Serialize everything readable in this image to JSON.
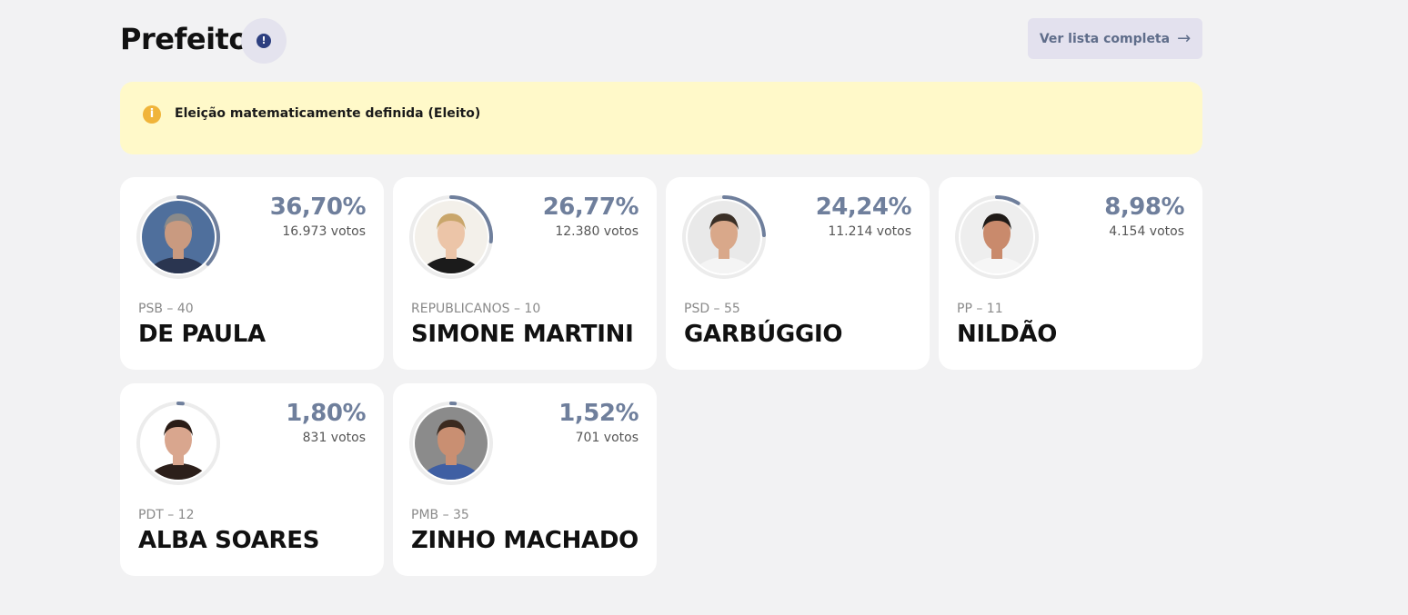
{
  "header": {
    "title": "Prefeito",
    "info_glyph": "!",
    "list_button_label": "Ver lista completa",
    "list_button_arrow": "→"
  },
  "banner": {
    "icon_glyph": "i",
    "text": "Eleição matematicamente definida (Eleito)"
  },
  "colors": {
    "accent": "#6f7f9c",
    "ring_track": "#ececec",
    "banner_bg": "#fff9c9",
    "banner_icon": "#f0b43a",
    "info_icon": "#2d3f80"
  },
  "candidates": [
    {
      "pct": "36,70%",
      "share": 0.367,
      "votes": "16.973 votos",
      "party": "PSB – 40",
      "name": "DE PAULA",
      "photo": {
        "bg": "#4f6f9c",
        "skin": "#c99a80",
        "hair": "#8a8a8a",
        "shirt": "#2a3550"
      }
    },
    {
      "pct": "26,77%",
      "share": 0.2677,
      "votes": "12.380 votos",
      "party": "REPUBLICANOS – 10",
      "name": "SIMONE MARTINI",
      "photo": {
        "bg": "#f3f0ea",
        "skin": "#ecc5a8",
        "hair": "#c9a66b",
        "shirt": "#1b1b1b"
      }
    },
    {
      "pct": "24,24%",
      "share": 0.2424,
      "votes": "11.214 votos",
      "party": "PSD – 55",
      "name": "GARBÚGGIO",
      "photo": {
        "bg": "#e9e9e9",
        "skin": "#d9a88a",
        "hair": "#3a2f26",
        "shirt": "#f4f4f4"
      }
    },
    {
      "pct": "8,98%",
      "share": 0.0898,
      "votes": "4.154 votos",
      "party": "PP – 11",
      "name": "NILDÃO",
      "photo": {
        "bg": "#eeeeee",
        "skin": "#c98a6c",
        "hair": "#1f1a17",
        "shirt": "#f6f6f6"
      }
    },
    {
      "pct": "1,80%",
      "share": 0.018,
      "votes": "831 votos",
      "party": "PDT – 12",
      "name": "ALBA SOARES",
      "photo": {
        "bg": "#ffffff",
        "skin": "#d9a68e",
        "hair": "#2a1c16",
        "shirt": "#2c1f1a"
      }
    },
    {
      "pct": "1,52%",
      "share": 0.0152,
      "votes": "701 votos",
      "party": "PMB – 35",
      "name": "ZINHO MACHADO",
      "photo": {
        "bg": "#8b8b8b",
        "skin": "#c98f72",
        "hair": "#3b2a1f",
        "shirt": "#3f5fa3"
      }
    }
  ]
}
